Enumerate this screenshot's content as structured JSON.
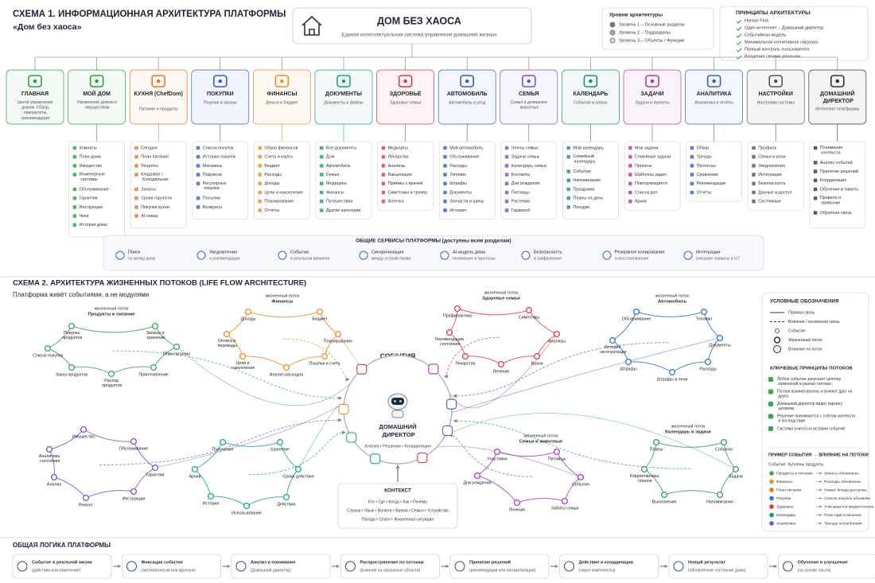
{
  "schema1": {
    "title": "СХЕМА 1. ИНФОРМАЦИОННАЯ АРХИТЕКТУРА ПЛАТФОРМЫ",
    "subtitle": "«Дом без хаоса»",
    "header": {
      "title": "ДОМ БЕЗ ХАОСА",
      "subtitle": "Единая интеллектуальная система управления домашней жизнью"
    },
    "levels": {
      "title": "Уровни архитектуры",
      "items": [
        "Уровень 1 – Основные разделы",
        "Уровень 2 – Подразделы",
        "Уровень 3 – Объекты / Функции"
      ]
    },
    "principles": {
      "title": "ПРИНЦИПЫ АРХИТЕКТУРЫ",
      "items": [
        "Human First",
        "Один интеллект – Домашний директор",
        "Событийная модель",
        "Минимальная когнитивная нагрузка",
        "Полный контроль пользователя",
        "Владение своими данными"
      ]
    },
    "modules": [
      {
        "title": "ГЛАВНАЯ",
        "desc": "Центр управления домом. Обзор, приоритеты, рекомендации",
        "color": "#2e9e44",
        "items": []
      },
      {
        "title": "МОЙ ДОМ",
        "desc": "Управление домом и имуществом",
        "color": "#2e9e44",
        "items": [
          "Комнаты",
          "План дома",
          "Имущество",
          "Инженерные системы",
          "Обслуживание",
          "Гарантии",
          "Инструкции",
          "Чеки",
          "История дома"
        ]
      },
      {
        "title": "КУХНЯ (ChefDom)",
        "desc": "Питание и продукты",
        "color": "#e8742a",
        "items": [
          "Сегодня",
          "План питания",
          "Рецепты",
          "Кладовая / Холодильник",
          "Запасы",
          "Сроки годности",
          "Покупки кухни",
          "AI-повар"
        ]
      },
      {
        "title": "ПОКУПКИ",
        "desc": "Покупки и заказы",
        "color": "#3a5bd0",
        "items": [
          "Список покупок",
          "История покупок",
          "Магазины",
          "Подписки",
          "Регулярные покупки",
          "Посылки",
          "Возвраты"
        ]
      },
      {
        "title": "ФИНАНСЫ",
        "desc": "Деньги и бюджет",
        "color": "#e8902a",
        "items": [
          "Обзор финансов",
          "Счета и карты",
          "Бюджет",
          "Расходы",
          "Доходы",
          "Цели и накопления",
          "Планирование",
          "Отчёты"
        ]
      },
      {
        "title": "ДОКУМЕНТЫ",
        "desc": "Документы и файлы",
        "color": "#1a9f8a",
        "items": [
          "Все документы",
          "Дом",
          "Автомобиль",
          "Семья",
          "Медицина",
          "Финансы",
          "Путешествия",
          "Другие категории"
        ]
      },
      {
        "title": "ЗДОРОВЬЕ",
        "desc": "Здоровье семьи",
        "color": "#d83a4a",
        "items": [
          "Медкарты",
          "Лекарства",
          "Анализы",
          "Вакцинация",
          "Приёмы у врачей",
          "Симптомы и трекер",
          "Аптечка"
        ]
      },
      {
        "title": "АВТОМОБИЛЬ",
        "desc": "Автомобиль и уход",
        "color": "#2f5fc8",
        "items": [
          "Мой автомобиль",
          "Обслуживание",
          "Расходы",
          "Топливо",
          "Штрафы",
          "Документы",
          "Запчасти и шины",
          "История"
        ]
      },
      {
        "title": "СЕМЬЯ",
        "desc": "Семья и домашние животные",
        "color": "#7d4fc4",
        "items": [
          "Члены семьи",
          "Задачи семьи",
          "Календарь семьи",
          "Контакты",
          "Дни рождения",
          "Питомцы",
          "Растения",
          "Гардероб"
        ]
      },
      {
        "title": "КАЛЕНДАРЬ",
        "desc": "События и планы",
        "color": "#1a8f7a",
        "items": [
          "Мой календарь",
          "Семейный календарь",
          "События",
          "Напоминания",
          "Праздники",
          "Планы на день",
          "Поездки"
        ]
      },
      {
        "title": "ЗАДАЧИ",
        "desc": "Задачи и проекты",
        "color": "#b03aa8",
        "items": [
          "Мои задачи",
          "Семейные задачи",
          "Проекты",
          "Шаблоны задач",
          "Повторяющиеся",
          "Список дел",
          "Архив"
        ]
      },
      {
        "title": "АНАЛИТИКА",
        "desc": "Аналитика и отчёты",
        "color": "#3560c8",
        "items": [
          "Обзор",
          "Тренды",
          "Прогнозы",
          "Сравнение",
          "Рекомендации",
          "Отчёты"
        ]
      },
      {
        "title": "НАСТРОЙКИ",
        "desc": "Настройки системы",
        "color": "#555555",
        "items": [
          "Профиль",
          "Семья и роли",
          "Уведомления",
          "Интеграции",
          "Безопасность",
          "Данные и доступ",
          "Системные"
        ]
      },
      {
        "title": "ДОМАШНИЙ ДИРЕКТОР",
        "desc": "Интеллект платформы",
        "color": "#333333",
        "items": [
          "Понимание контекста",
          "Анализ событий",
          "Принятие решений",
          "Координация",
          "Обучение и память",
          "Правила и привычки",
          "Обратная связь"
        ]
      }
    ],
    "services": {
      "title": "ОБЩИЕ СЕРВИСЫ ПЛАТФОРМЫ (доступны всем разделам)",
      "items": [
        {
          "name": "Поиск",
          "desc": "по всему дому"
        },
        {
          "name": "Уведомления",
          "desc": "и рекомендации"
        },
        {
          "name": "События",
          "desc": "в реальном времени"
        },
        {
          "name": "Синхронизация",
          "desc": "между устройствами"
        },
        {
          "name": "AI-модель дома",
          "desc": "понимание и прогнозы"
        },
        {
          "name": "Безопасность",
          "desc": "и шифрование"
        },
        {
          "name": "Резервное копирование",
          "desc": "и восстановление"
        },
        {
          "name": "Интеграции",
          "desc": "внешние сервисы и IoT"
        }
      ]
    }
  },
  "schema2": {
    "title": "СХЕМА 2. АРХИТЕКТУРА ЖИЗНЕННЫХ ПОТОКОВ (LIFE FLOW ARCHITECTURE)",
    "subtitle": "Платформа живёт событиями, а не модулями",
    "flow_prefix": "жизненный поток",
    "events": "СОБЫТИЯ",
    "director": {
      "title": "ДОМАШНИЙ ДИРЕКТОР",
      "desc": "Анализ • Решения • Координация"
    },
    "flows": [
      {
        "title": "Продукты и питание",
        "color": "#3aa657",
        "nodes": [
          "Покупка продуктов",
          "Запасы и хранение",
          "План питания",
          "Приготовление",
          "Расход продуктов",
          "Заказ продуктов",
          "Список покупок"
        ]
      },
      {
        "title": "Финансы",
        "color": "#f08a24",
        "nodes": [
          "Доходы",
          "Бюджет",
          "Планирование",
          "Покупки и счета",
          "Анализ расходов",
          "Цели и накопления",
          "Оплата и переводы"
        ]
      },
      {
        "title": "Здоровье семьи",
        "color": "#e0393e",
        "nodes": [
          "Профилактика",
          "Симптомы",
          "Анализы",
          "Врачи",
          "Лечение",
          "Лекарства",
          "Рекомендации состояния"
        ]
      },
      {
        "title": "Автомобиль",
        "color": "#2f6fd6",
        "nodes": [
          "Обслуживание",
          "Топливо",
          "Документы",
          "Расходы",
          "Штрафы и пени",
          "Штрафы",
          "История эксплуатации"
        ]
      },
      {
        "title": null,
        "color": "#7b4fd6",
        "nodes": [
          "Имущество",
          "Обслуживание",
          "Гарантии",
          "Инструкции",
          "Ремонт",
          "Анализ",
          "Аналитика состояния"
        ]
      },
      {
        "title": null,
        "color": "#1aa39a",
        "nodes": [
          "Получение",
          "Хранение",
          "Сроки действия",
          "Действия",
          "Использование",
          "История",
          "Архив"
        ]
      },
      {
        "title": "Семья и животные",
        "color": "#9b45c0",
        "nodes": [
          "Участники",
          "Питомцы",
          "События",
          "Заботы семьи",
          "Лечение",
          "Дни рождения"
        ]
      },
      {
        "title": "Календарь и задачи",
        "color": "#2e9e5b",
        "nodes": [
          "Планы",
          "События",
          "Задачи",
          "Напоминания",
          "Выполнение",
          "Корректировка планов"
        ]
      }
    ],
    "context": {
      "title": "КОНТЕКСТ",
      "lines": [
        "Кто • Где • Когда • Как • Почему",
        "Страна • Язык • Валюта • Время • Семья • Устройство",
        "Погода • Сезон • Жизненная ситуация"
      ]
    },
    "legend": {
      "title": "УСЛОВНЫЕ ОБОЗНАЧЕНИЯ",
      "items": [
        "Прямая связь",
        "Влияние / косвенная связь",
        "Событие",
        "Жизненный поток",
        "Влияние на поток"
      ]
    },
    "key_principles": {
      "title": "КЛЮЧЕВЫЕ ПРИНЦИПЫ ПОТОКОВ",
      "items": [
        "Любое событие запускает цепочку изменений в разных потоках",
        "Потоки взаимосвязаны и влияют друг на друга",
        "Домашний директор видит картину целиком",
        "Решение принимается с учётом контекста и последствий",
        "Система учится на истории событий"
      ]
    },
    "example": {
      "title": "ПРИМЕР СОБЫТИЯ → ВЛИЯНИЕ НА ПОТОКИ",
      "event": "Событие: Куплены продукты",
      "rows": [
        {
          "from": "Продукты и питание",
          "to": "Запасы обновлены",
          "color": "#3aa657"
        },
        {
          "from": "Финансы",
          "to": "Расходы обновлены",
          "color": "#f08a24"
        },
        {
          "from": "План питания",
          "to": "Новые блюда доступны",
          "color": "#e8742a"
        },
        {
          "from": "Покупки",
          "to": "Список покупок обновлён",
          "color": "#2f6fd6"
        },
        {
          "from": "Здоровье",
          "to": "Учитывается предпочтение",
          "color": "#e0393e"
        },
        {
          "from": "Календарь",
          "to": "План приготовления",
          "color": "#1a8f7a"
        },
        {
          "from": "Аналитика",
          "to": "Тренды потребления",
          "color": "#7b4fd6"
        }
      ]
    }
  },
  "logic": {
    "title": "ОБЩАЯ ЛОГИКА ПЛАТФОРМЫ",
    "steps": [
      {
        "name": "Событие в реальной жизни",
        "desc": "(действия или изменение)"
      },
      {
        "name": "Фиксация события",
        "desc": "(автоматически или вручную)"
      },
      {
        "name": "Анализ и понимание",
        "desc": "(Домашний директор)"
      },
      {
        "name": "Распространение по потокам",
        "desc": "(влияние на связанные области)"
      },
      {
        "name": "Принятие решений",
        "desc": "(рекомендации или автоматизация)"
      },
      {
        "name": "Действие и координация",
        "desc": "(через компоненты)"
      },
      {
        "name": "Новый результат",
        "desc": "(обновлённое состояние дома)"
      },
      {
        "name": "Обучение и улучшение",
        "desc": "(на основе опыта)"
      }
    ]
  }
}
